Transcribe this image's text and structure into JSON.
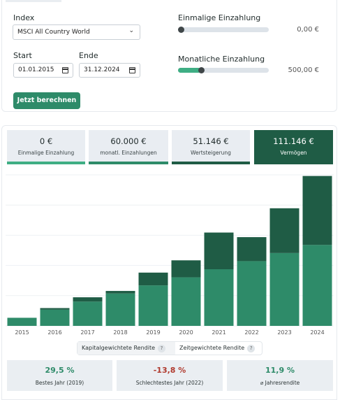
{
  "form": {
    "index_label": "Index",
    "index_value": "MSCI All Country World",
    "start_label": "Start",
    "start_value": "01.01.2015",
    "end_label": "Ende",
    "end_value": "31.12.2024",
    "submit_label": "Jetzt berechnen",
    "one_time": {
      "label": "Einmalige Einzahlung",
      "value": "0,00 €",
      "level": 0.0
    },
    "monthly": {
      "label": "Monatliche Einzahlung",
      "value": "500,00 €",
      "level": 0.25
    }
  },
  "summary": [
    {
      "value": "0 €",
      "caption": "Einmalige Einzahlung",
      "accent": "#3fae84"
    },
    {
      "value": "60.000 €",
      "caption": "monatl. Einzahlungen",
      "accent": "#2e8b69"
    },
    {
      "value": "51.146 €",
      "caption": "Wertsteigerung",
      "accent": "#1f5c45"
    },
    {
      "value": "111.146 €",
      "caption": "Vermögen",
      "accent": "#1f5c45"
    }
  ],
  "chart_data": {
    "type": "bar",
    "stacked": true,
    "categories": [
      "2015",
      "2016",
      "2017",
      "2018",
      "2019",
      "2020",
      "2021",
      "2022",
      "2023",
      "2024"
    ],
    "series": [
      {
        "values": [
          6000,
          12000,
          18000,
          24000,
          30000,
          36000,
          42000,
          48000,
          54000,
          60000
        ],
        "color": "#2e8b69"
      },
      {
        "values": [
          0,
          1200,
          3200,
          1900,
          9500,
          12600,
          27200,
          17800,
          33200,
          51146
        ],
        "color": "#1f5c45"
      }
    ],
    "ylim": [
      0,
      112000
    ],
    "grid": true
  },
  "return_toggle": {
    "capital_weighted": "Kapitalgewichtete Rendite",
    "time_weighted": "Zeitgewichtete Rendite",
    "help": "?"
  },
  "kpis": [
    {
      "value": "29,5 %",
      "caption": "Bestes Jahr (2019)",
      "color": "#2e8b69"
    },
    {
      "value": "-13,8 %",
      "caption": "Schlechtestes Jahr (2022)",
      "color": "#b03a2e"
    },
    {
      "value": "11,9 %",
      "caption": "⌀ Jahresrendite",
      "color": "#2e8b69"
    }
  ]
}
